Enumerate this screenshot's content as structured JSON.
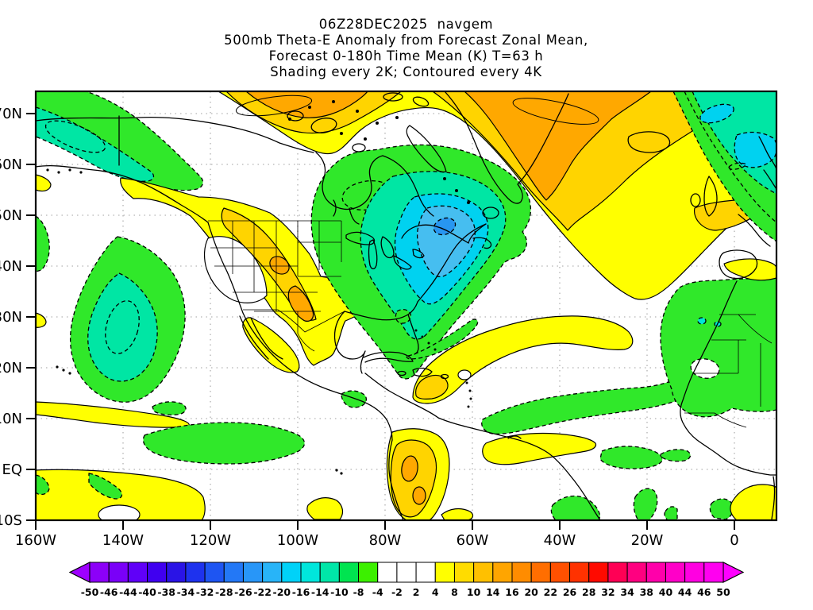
{
  "title": {
    "line1": "06Z28DEC2025  navgem",
    "line2": "500mb Theta-E Anomaly from Forecast Zonal Mean,",
    "line3": "Forecast 0-180h Time Mean (K) T=63 h",
    "line4": "Shading every 2K; Contoured every 4K"
  },
  "axes": {
    "lat": {
      "labels": [
        "70N",
        "60N",
        "50N",
        "40N",
        "30N",
        "20N",
        "10N",
        "EQ",
        "10S"
      ]
    },
    "lon": {
      "labels": [
        "160W",
        "140W",
        "120W",
        "100W",
        "80W",
        "60W",
        "40W",
        "20W",
        "0"
      ]
    }
  },
  "colorbar": {
    "labels": [
      "-50",
      "-46",
      "-44",
      "-40",
      "-38",
      "-34",
      "-32",
      "-28",
      "-26",
      "-22",
      "-20",
      "-16",
      "-14",
      "-10",
      "-8",
      "-4",
      "-2",
      "2",
      "4",
      "8",
      "10",
      "14",
      "16",
      "20",
      "22",
      "26",
      "28",
      "32",
      "34",
      "38",
      "40",
      "44",
      "46",
      "50"
    ],
    "cell_colors": [
      "#8C00F8",
      "#7A00F8",
      "#6000F8",
      "#4000F0",
      "#2A14E6",
      "#1E32EE",
      "#1E55F2",
      "#2378F6",
      "#2896F8",
      "#28B4F8",
      "#00D2F8",
      "#00E6DC",
      "#00E6A8",
      "#00E450",
      "#3CF000",
      "#FFFFFF",
      "#FFFFFF",
      "#FFFFFF",
      "#FFFF00",
      "#FFDC00",
      "#FFC000",
      "#FFA500",
      "#FF8C00",
      "#FF6E00",
      "#FF5000",
      "#FF3200",
      "#FF0A00",
      "#FF0055",
      "#FF0080",
      "#FF00AA",
      "#FF00C8",
      "#FF00E1",
      "#FF00F0"
    ],
    "left_arrow_color": "#9E00FF",
    "right_arrow_color": "#FF00FF"
  },
  "colors": {
    "yellow": "#FFFF00",
    "gold": "#FFD400",
    "orange": "#FFA800",
    "green": "#30E82A",
    "green2": "#00E450",
    "aqua": "#00E6A4",
    "turquoise": "#00E6D8",
    "cyan": "#00D2F0",
    "skyblue": "#46BEF0",
    "blue": "#2896F0",
    "grid": "#C0C0C0",
    "coast": "#000000"
  },
  "chart_data": {
    "type": "heatmap",
    "subtype": "filled-contour-weather-map",
    "model": "navgem",
    "run": "06Z28DEC2025",
    "field": "500mb Theta-E Anomaly from Forecast Zonal Mean, Forecast 0-180h Time Mean",
    "units": "K",
    "forecast_hour": 63,
    "shading_interval_K": 2,
    "contour_interval_K": 4,
    "contour_style": {
      "positive": "solid",
      "negative": "dashed"
    },
    "lon_range": [
      "160W",
      "10E"
    ],
    "lat_range": [
      "10S",
      "75N"
    ],
    "grid": "dotted gray every 10 deg lat / 20 deg lon",
    "levels_K": [
      -50,
      -46,
      -44,
      -40,
      -38,
      -34,
      -32,
      -28,
      -26,
      -22,
      -20,
      -16,
      -14,
      -10,
      -8,
      -4,
      -2,
      2,
      4,
      8,
      10,
      14,
      16,
      20,
      22,
      26,
      28,
      32,
      34,
      38,
      40,
      44,
      46,
      50
    ],
    "legend_position": "bottom colorbar with out-of-range arrows",
    "features": [
      {
        "name": "Great Lakes / eastern Canada cold anomaly",
        "sign": "negative",
        "approx_center": "75W 47N",
        "peak_K": -22
      },
      {
        "name": "Canadian Arctic warm band",
        "sign": "positive",
        "approx_center": "105W 73N",
        "peak_K": 12
      },
      {
        "name": "Greenland to North Atlantic warm band",
        "sign": "positive",
        "approx_center": "40W 65N",
        "peak_K": 12
      },
      {
        "name": "Central / southern US plains warm anomaly",
        "sign": "positive",
        "approx_center": "98W 34N",
        "peak_K": 12
      },
      {
        "name": "Alaska / Bering negative band with cores",
        "sign": "negative",
        "approx_center": "150W 66N",
        "peak_K": -12
      },
      {
        "name": "Northeast Pacific cold anomaly",
        "sign": "negative",
        "approx_center": "145W 30N",
        "peak_K": -12
      },
      {
        "name": "Northeast Atlantic / Scandinavia cold anomaly",
        "sign": "negative",
        "approx_center": "5W 68N",
        "peak_K": -14
      },
      {
        "name": "Subtropical Atlantic warm arc",
        "sign": "positive",
        "approx_center": "55W 27N",
        "peak_K": 10
      },
      {
        "name": "Tropical Atlantic - West Africa negative band",
        "sign": "negative",
        "approx_center": "30W 13N",
        "peak_K": -8
      },
      {
        "name": "Colombia warm anomaly",
        "sign": "positive",
        "approx_center": "74W 3N",
        "peak_K": 12
      },
      {
        "name": "Eastern tropical Pacific ITCZ negative band",
        "sign": "negative",
        "approx_center": "120W 6N",
        "peak_K": -6
      },
      {
        "name": "Southeast tropical Pacific warm area (bottom-left corner)",
        "sign": "positive",
        "approx_center": "145W 7S",
        "peak_K": 6
      }
    ]
  }
}
